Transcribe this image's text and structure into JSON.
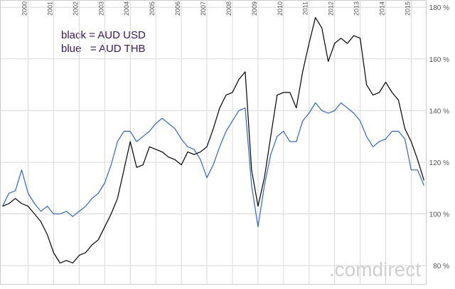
{
  "chart_data": {
    "type": "line",
    "annotations": [
      "black = AUD USD",
      "blue   = AUD THB"
    ],
    "watermark": ".comdirect",
    "x": [
      1999.0,
      1999.25,
      1999.5,
      1999.75,
      2000.0,
      2000.25,
      2000.5,
      2000.75,
      2001.0,
      2001.25,
      2001.5,
      2001.75,
      2002.0,
      2002.25,
      2002.5,
      2002.75,
      2003.0,
      2003.25,
      2003.5,
      2003.75,
      2004.0,
      2004.25,
      2004.5,
      2004.75,
      2005.0,
      2005.25,
      2005.5,
      2005.75,
      2006.0,
      2006.25,
      2006.5,
      2006.75,
      2007.0,
      2007.25,
      2007.5,
      2007.75,
      2008.0,
      2008.25,
      2008.5,
      2008.75,
      2009.0,
      2009.25,
      2009.5,
      2009.75,
      2010.0,
      2010.25,
      2010.5,
      2010.75,
      2011.0,
      2011.25,
      2011.5,
      2011.75,
      2012.0,
      2012.25,
      2012.5,
      2012.75,
      2013.0,
      2013.25,
      2013.5,
      2013.75,
      2014.0,
      2014.25,
      2014.5,
      2014.75,
      2015.0,
      2015.25,
      2015.5
    ],
    "series": [
      {
        "color": "#000000",
        "values": [
          103,
          104,
          106,
          104,
          103,
          100,
          97,
          92,
          85,
          81,
          82,
          81,
          84,
          85,
          88,
          90,
          95,
          100,
          106,
          117,
          128,
          118,
          119,
          126,
          125,
          124,
          122,
          121,
          119,
          124,
          123,
          124,
          126,
          133,
          141,
          146,
          147,
          152,
          155,
          117,
          103,
          114,
          130,
          146,
          147,
          147,
          141,
          155,
          166,
          176,
          172,
          159,
          166,
          168,
          166,
          169,
          168,
          150,
          146,
          147,
          151,
          147,
          144,
          133,
          128,
          121,
          113
        ]
      },
      {
        "color": "#3366bb",
        "values": [
          103,
          108,
          109,
          117,
          108,
          104,
          101,
          103,
          100,
          100,
          101,
          99,
          101,
          103,
          106,
          108,
          112,
          119,
          128,
          132,
          132,
          128,
          130,
          132,
          135,
          137,
          135,
          133,
          129,
          126,
          125,
          121,
          114,
          119,
          126,
          132,
          136,
          140,
          141,
          111,
          95,
          111,
          123,
          130,
          132,
          128,
          128,
          136,
          139,
          143,
          140,
          139,
          140,
          143,
          141,
          139,
          136,
          130,
          126,
          128,
          129,
          132,
          132,
          129,
          117,
          117,
          111
        ]
      }
    ],
    "xlim": [
      1998.9,
      2015.6
    ],
    "xticks": [
      2000,
      2001,
      2002,
      2003,
      2004,
      2005,
      2006,
      2007,
      2008,
      2009,
      2010,
      2011,
      2012,
      2013,
      2014,
      2015
    ],
    "ylim": [
      72.6,
      182.8
    ],
    "yticks": [
      {
        "value": 80,
        "label": "80 %"
      },
      {
        "value": 100,
        "label": "100 %"
      },
      {
        "value": 120,
        "label": "120 %"
      },
      {
        "value": 140,
        "label": "140 %"
      },
      {
        "value": 160,
        "label": "160 %"
      },
      {
        "value": 180,
        "label": "180 %"
      }
    ],
    "grid": true
  }
}
